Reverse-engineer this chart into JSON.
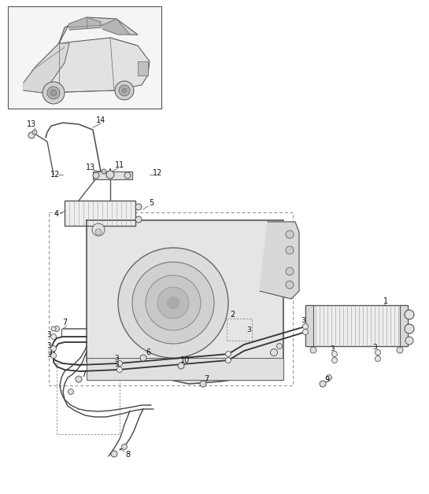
{
  "bg_color": "#ffffff",
  "line_color": "#2a2a2a",
  "gray1": "#888888",
  "gray2": "#aaaaaa",
  "gray3": "#cccccc",
  "gray4": "#e8e8e8",
  "figsize": [
    5.45,
    6.28
  ],
  "dpi": 100,
  "xlim": [
    0,
    545
  ],
  "ylim": [
    0,
    628
  ]
}
